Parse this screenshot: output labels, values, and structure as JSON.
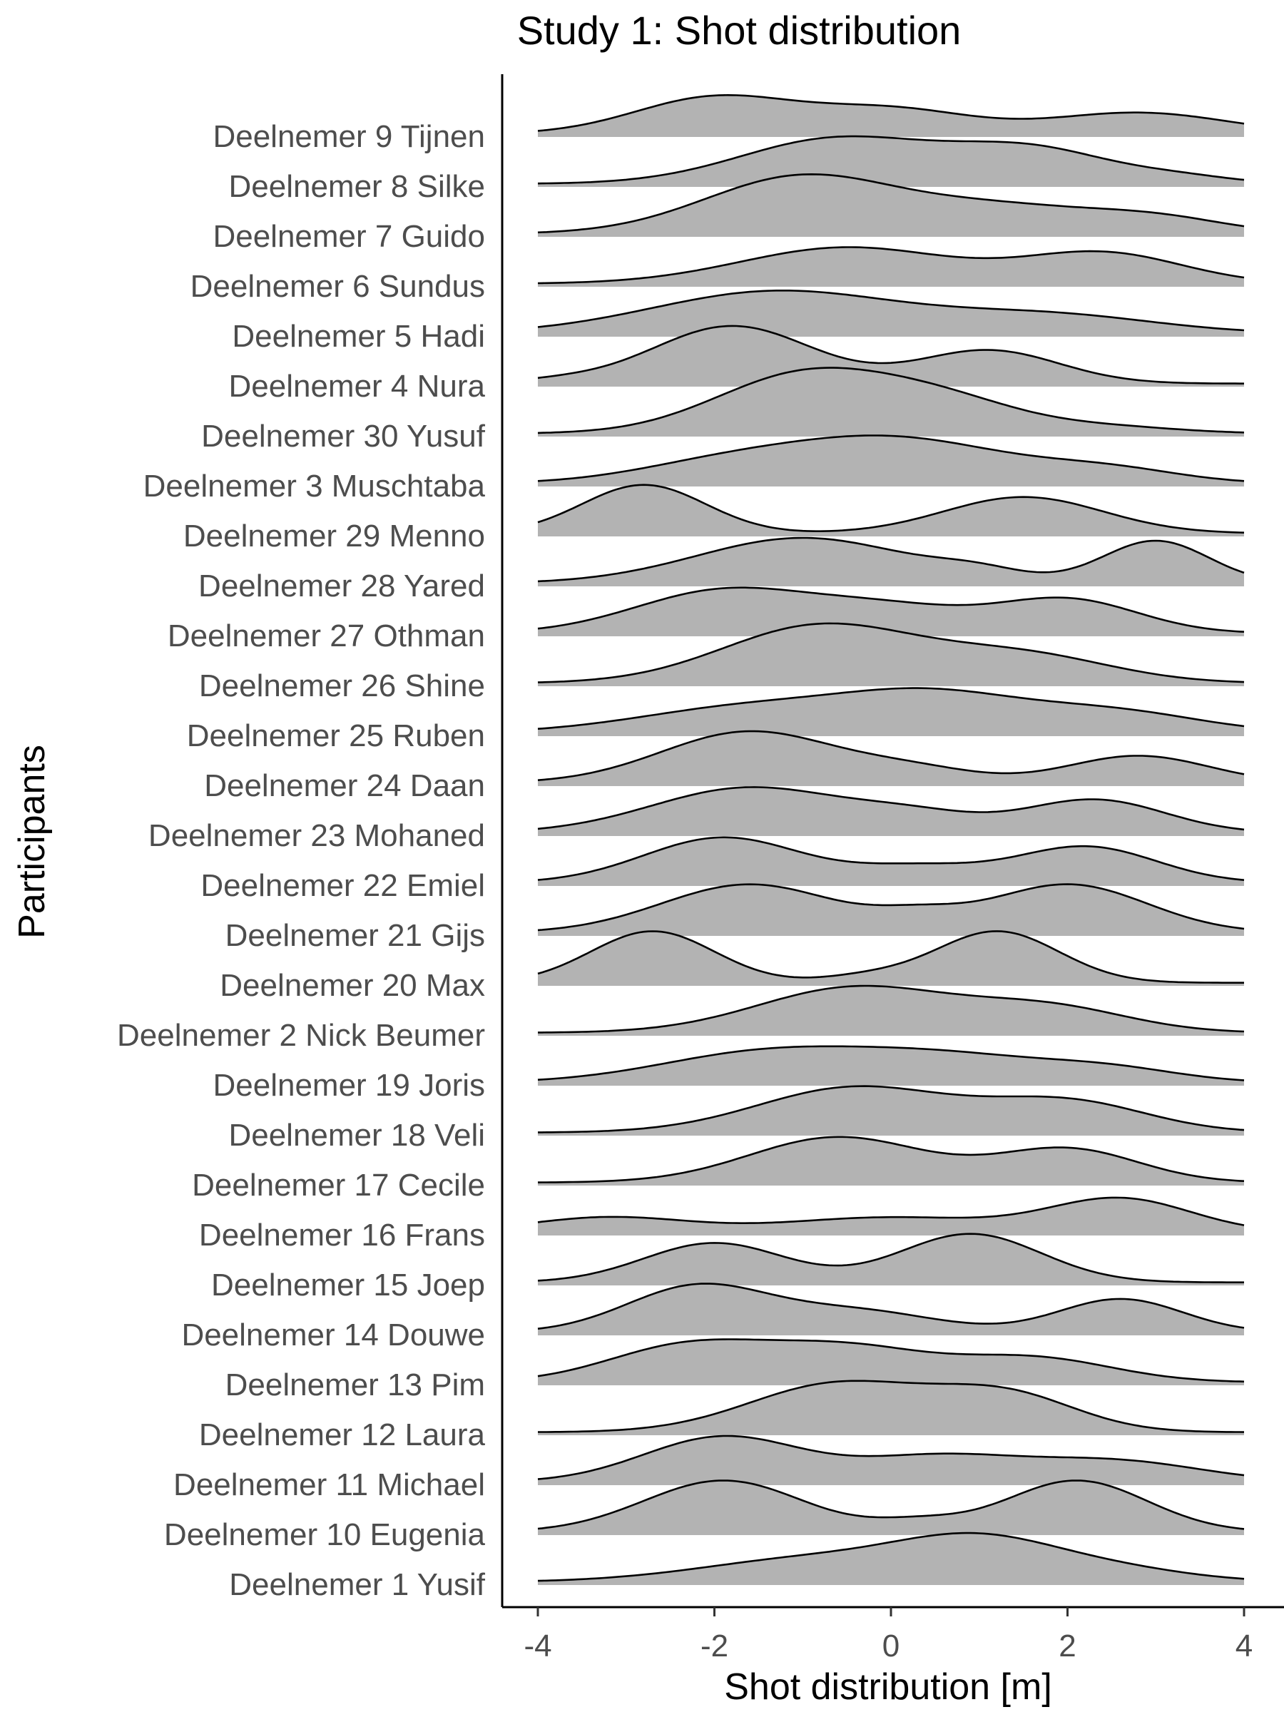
{
  "chart_data": {
    "type": "ridgeline",
    "title": "Study 1: Shot distribution",
    "xlabel": "Shot distribution [m]",
    "ylabel": "Participants",
    "xlim": [
      -4,
      4
    ],
    "x_ticks": [
      -4,
      -2,
      0,
      2,
      4
    ],
    "fill_color": "#b3b3b3",
    "line_color": "#000000",
    "grid": false,
    "series": [
      {
        "name": "Deelnemer 9 Tijnen",
        "peaks": [
          [
            -2.0,
            0.6,
            0.9
          ],
          [
            0.0,
            0.4,
            0.9
          ],
          [
            2.8,
            0.35,
            1.0
          ]
        ]
      },
      {
        "name": "Deelnemer 8 Silke",
        "peaks": [
          [
            -0.6,
            0.75,
            1.1
          ],
          [
            1.6,
            0.55,
            0.9
          ],
          [
            3.3,
            0.1,
            0.6
          ]
        ]
      },
      {
        "name": "Deelnemer 7 Guido",
        "peaks": [
          [
            -1.0,
            0.95,
            1.1
          ],
          [
            1.3,
            0.4,
            1.0
          ],
          [
            3.0,
            0.25,
            0.8
          ]
        ]
      },
      {
        "name": "Deelnemer 6 Sundus",
        "peaks": [
          [
            -0.5,
            0.6,
            1.2
          ],
          [
            2.4,
            0.5,
            0.9
          ]
        ]
      },
      {
        "name": "Deelnemer 5 Hadi",
        "peaks": [
          [
            -1.3,
            0.7,
            1.4
          ],
          [
            1.8,
            0.3,
            1.2
          ]
        ]
      },
      {
        "name": "Deelnemer 4 Nura",
        "peaks": [
          [
            -1.8,
            0.95,
            0.9
          ],
          [
            1.1,
            0.55,
            0.8
          ],
          [
            -3.8,
            0.05,
            0.5
          ]
        ]
      },
      {
        "name": "Deelnemer 30 Yusuf",
        "peaks": [
          [
            -1.0,
            0.95,
            1.0
          ],
          [
            0.6,
            0.5,
            0.9
          ],
          [
            2.5,
            0.1,
            0.8
          ]
        ]
      },
      {
        "name": "Deelnemer 3 Muschtaba",
        "peaks": [
          [
            0.0,
            0.75,
            1.3
          ],
          [
            -2.0,
            0.25,
            1.0
          ],
          [
            2.5,
            0.2,
            0.8
          ]
        ]
      },
      {
        "name": "Deelnemer 29 Menno",
        "peaks": [
          [
            -2.8,
            0.8,
            0.7
          ],
          [
            1.5,
            0.6,
            0.9
          ]
        ]
      },
      {
        "name": "Deelnemer 28 Yared",
        "peaks": [
          [
            -1.0,
            0.75,
            1.2
          ],
          [
            3.0,
            0.7,
            0.6
          ],
          [
            1.0,
            0.15,
            0.5
          ]
        ]
      },
      {
        "name": "Deelnemer 27 Othman",
        "peaks": [
          [
            -1.9,
            0.7,
            1.0
          ],
          [
            0.0,
            0.4,
            0.9
          ],
          [
            2.0,
            0.55,
            0.8
          ]
        ]
      },
      {
        "name": "Deelnemer 26 Shine",
        "peaks": [
          [
            -0.8,
            0.95,
            1.1
          ],
          [
            1.5,
            0.45,
            1.0
          ]
        ]
      },
      {
        "name": "Deelnemer 25 Ruben",
        "peaks": [
          [
            -1.5,
            0.45,
            1.3
          ],
          [
            0.5,
            0.55,
            1.0
          ],
          [
            2.5,
            0.35,
            1.0
          ]
        ]
      },
      {
        "name": "Deelnemer 24 Daan",
        "peaks": [
          [
            -1.6,
            0.85,
            1.0
          ],
          [
            0.3,
            0.2,
            0.7
          ],
          [
            2.8,
            0.45,
            0.8
          ]
        ]
      },
      {
        "name": "Deelnemer 23 Mohaned",
        "peaks": [
          [
            -1.6,
            0.75,
            1.1
          ],
          [
            0.3,
            0.25,
            0.7
          ],
          [
            2.3,
            0.55,
            0.8
          ]
        ]
      },
      {
        "name": "Deelnemer 22 Emiel",
        "peaks": [
          [
            -1.9,
            0.75,
            0.9
          ],
          [
            0.3,
            0.25,
            0.7
          ],
          [
            2.2,
            0.6,
            0.8
          ]
        ]
      },
      {
        "name": "Deelnemer 21 Gijs",
        "peaks": [
          [
            -1.6,
            0.8,
            1.0
          ],
          [
            2.0,
            0.8,
            0.9
          ],
          [
            0.3,
            0.2,
            0.5
          ]
        ]
      },
      {
        "name": "Deelnemer 20 Max",
        "peaks": [
          [
            -2.7,
            0.85,
            0.7
          ],
          [
            1.2,
            0.85,
            0.7
          ],
          [
            -0.3,
            0.1,
            0.5
          ]
        ]
      },
      {
        "name": "Deelnemer 2 Nick Beumer",
        "peaks": [
          [
            -0.4,
            0.75,
            1.1
          ],
          [
            1.8,
            0.4,
            0.9
          ]
        ]
      },
      {
        "name": "Deelnemer 19 Joris",
        "peaks": [
          [
            -1.4,
            0.5,
            1.2
          ],
          [
            0.7,
            0.4,
            1.1
          ],
          [
            2.5,
            0.2,
            0.8
          ]
        ]
      },
      {
        "name": "Deelnemer 18 Veli",
        "peaks": [
          [
            -0.4,
            0.75,
            1.1
          ],
          [
            2.0,
            0.5,
            0.9
          ]
        ]
      },
      {
        "name": "Deelnemer 17 Cecile",
        "peaks": [
          [
            -0.6,
            0.75,
            1.0
          ],
          [
            2.0,
            0.55,
            0.8
          ]
        ]
      },
      {
        "name": "Deelnemer 16 Frans",
        "peaks": [
          [
            -3.2,
            0.25,
            0.9
          ],
          [
            0.0,
            0.25,
            1.2
          ],
          [
            2.6,
            0.55,
            0.8
          ]
        ]
      },
      {
        "name": "Deelnemer 15 Joep",
        "peaks": [
          [
            -2.0,
            0.65,
            0.8
          ],
          [
            0.9,
            0.8,
            0.8
          ]
        ]
      },
      {
        "name": "Deelnemer 14 Douwe",
        "peaks": [
          [
            -2.2,
            0.75,
            0.8
          ],
          [
            -0.4,
            0.35,
            0.9
          ],
          [
            2.6,
            0.55,
            0.7
          ]
        ]
      },
      {
        "name": "Deelnemer 13 Pim",
        "peaks": [
          [
            -2.3,
            0.6,
            0.9
          ],
          [
            -0.5,
            0.55,
            0.9
          ],
          [
            1.6,
            0.4,
            0.9
          ]
        ]
      },
      {
        "name": "Deelnemer 12 Laura",
        "peaks": [
          [
            -0.6,
            0.8,
            1.0
          ],
          [
            1.3,
            0.6,
            0.8
          ]
        ]
      },
      {
        "name": "Deelnemer 11 Michael",
        "peaks": [
          [
            -1.9,
            0.75,
            0.9
          ],
          [
            0.5,
            0.4,
            0.9
          ],
          [
            2.5,
            0.35,
            1.0
          ]
        ]
      },
      {
        "name": "Deelnemer 10 Eugenia",
        "peaks": [
          [
            -1.9,
            0.85,
            0.9
          ],
          [
            2.1,
            0.85,
            0.8
          ],
          [
            0.3,
            0.15,
            0.5
          ]
        ]
      },
      {
        "name": "Deelnemer 1 Yusif",
        "peaks": [
          [
            -0.8,
            0.4,
            1.3
          ],
          [
            1.0,
            0.6,
            0.9
          ],
          [
            2.5,
            0.2,
            0.9
          ]
        ]
      }
    ]
  }
}
